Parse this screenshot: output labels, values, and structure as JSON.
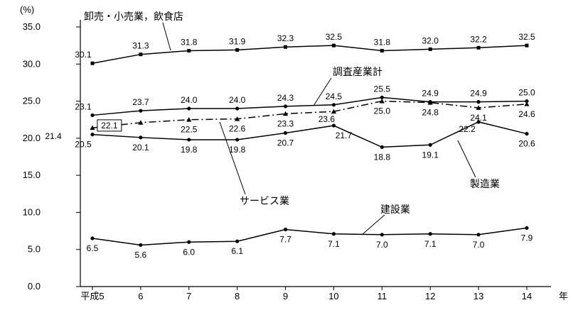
{
  "chart_data": {
    "type": "line",
    "title": "",
    "unit_label": "(%)",
    "x_axis_unit": "年",
    "x_labels": [
      "平成5",
      "6",
      "7",
      "8",
      "9",
      "10",
      "11",
      "12",
      "13",
      "14"
    ],
    "ylim": [
      0,
      35
    ],
    "ytick_step": 5,
    "grid": false,
    "legend_position": "inline-callouts",
    "colors": {
      "line": "#000000",
      "background": "#ffffff"
    },
    "series": [
      {
        "name": "卸売・小売業，飲食店",
        "line": "solid",
        "marker": "square",
        "label_side": "above",
        "values": [
          30.1,
          31.3,
          31.8,
          31.9,
          32.3,
          32.5,
          31.8,
          32.0,
          32.2,
          32.5
        ]
      },
      {
        "name": "調査産業計",
        "line": "solid",
        "marker": "circle",
        "label_side": "above",
        "values": [
          23.1,
          23.7,
          24.0,
          24.0,
          24.3,
          24.5,
          25.5,
          24.9,
          24.9,
          25.0
        ]
      },
      {
        "name": "サービス業",
        "line": "dashdot",
        "marker": "triangle",
        "label_side": "below",
        "values": [
          21.4,
          22.1,
          22.5,
          22.6,
          23.3,
          23.6,
          25.0,
          24.8,
          24.1,
          24.6
        ]
      },
      {
        "name": "製造業",
        "line": "solid",
        "marker": "circle",
        "label_side": "below",
        "values": [
          20.5,
          20.1,
          19.8,
          19.8,
          20.7,
          21.7,
          18.8,
          19.1,
          22.2,
          20.6
        ]
      },
      {
        "name": "建設業",
        "line": "solid",
        "marker": "circle",
        "label_side": "below",
        "values": [
          6.5,
          5.6,
          6.0,
          6.1,
          7.7,
          7.1,
          7.0,
          7.1,
          7.0,
          7.9
        ]
      }
    ]
  }
}
